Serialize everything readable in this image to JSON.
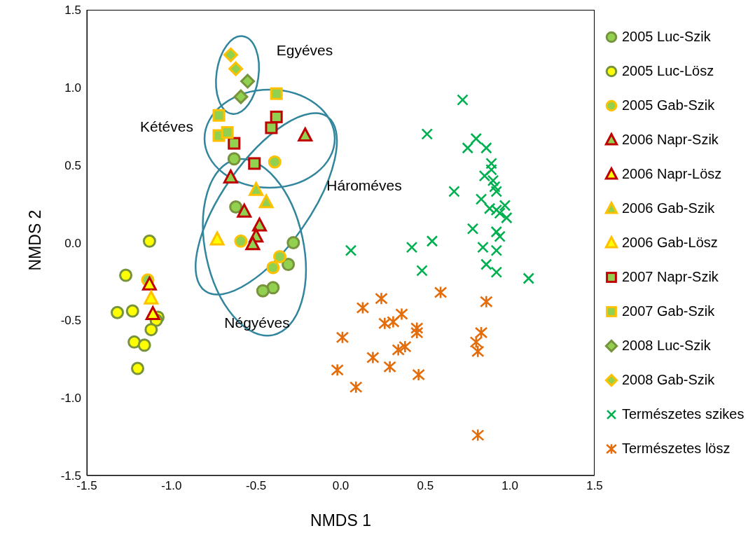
{
  "chart_data": {
    "type": "scatter",
    "xlabel": "NMDS 1",
    "ylabel": "NMDS 2",
    "xlim": [
      -1.5,
      1.5
    ],
    "ylim": [
      -1.5,
      1.5
    ],
    "xticks": [
      -1.5,
      {
        "value": -1,
        "label": "-1.0"
      },
      -0.5,
      {
        "value": 0,
        "label": "0.0"
      },
      0.5,
      {
        "value": 1,
        "label": "1.0"
      },
      1.5
    ],
    "yticks": [
      -1.5,
      {
        "value": -1,
        "label": "-1.0"
      },
      -0.5,
      {
        "value": 0,
        "label": "0.0"
      },
      0.5,
      {
        "value": 1,
        "label": "1.0"
      },
      1.5
    ],
    "grid": false,
    "legend": "right",
    "annotations": [
      "Egyéves",
      "Kétéves",
      "Hároméves",
      "Négyéves"
    ],
    "series": [
      {
        "name": "2005 Luc-Szik",
        "marker": "circle",
        "color": "#92d050",
        "x": [
          -0.63,
          -0.62,
          -0.28,
          -0.31,
          -0.4,
          -0.46
        ],
        "values": [
          0.54,
          0.23,
          0,
          -0.14,
          -0.29,
          -0.31
        ]
      },
      {
        "name": "2005 Luc-Lösz",
        "marker": "circle",
        "color": "#ffff00",
        "x": [
          -1.13,
          -1.27,
          -1.32,
          -1.23,
          -1.08,
          -1.09,
          -1.12,
          -1.22,
          -1.16,
          -1.2
        ],
        "values": [
          0.01,
          -0.21,
          -0.45,
          -0.44,
          -0.48,
          -0.5,
          -0.56,
          -0.64,
          -0.66,
          -0.81
        ]
      },
      {
        "name": "2005 Gab-Szik",
        "marker": "circle",
        "color": "#92d050",
        "x": [
          -1.14,
          -0.39,
          -0.59,
          -0.36,
          -0.4
        ],
        "values": [
          -0.24,
          0.52,
          0.01,
          -0.09,
          -0.16
        ]
      },
      {
        "name": "2006 Napr-Szik",
        "marker": "triangle",
        "color": "#92d050",
        "x": [
          -0.21,
          -0.65,
          -0.57,
          -0.48,
          -0.5,
          -0.52
        ],
        "values": [
          0.69,
          0.42,
          0.2,
          0.11,
          0.04,
          -0.01
        ]
      },
      {
        "name": "2006 Napr-Lösz",
        "marker": "triangle",
        "color": "#ffff00",
        "x": [
          -1.13,
          -1.11
        ],
        "values": [
          -0.27,
          -0.46
        ]
      },
      {
        "name": "2006 Gab-Szik",
        "marker": "triangle",
        "color": "#92d050",
        "x": [
          -0.5,
          -0.44
        ],
        "values": [
          0.34,
          0.26
        ]
      },
      {
        "name": "2006 Gab-Lösz",
        "marker": "triangle",
        "color": "#ffff00",
        "x": [
          -1.12,
          -0.73
        ],
        "values": [
          -0.36,
          0.02
        ]
      },
      {
        "name": "2007 Napr-Szik",
        "marker": "square",
        "color": "#92d050",
        "x": [
          -0.38,
          -0.41,
          -0.63,
          -0.51
        ],
        "values": [
          0.81,
          0.74,
          0.64,
          0.51
        ]
      },
      {
        "name": "2007 Gab-Szik",
        "marker": "square",
        "color": "#92d050",
        "x": [
          -0.38,
          -0.72,
          -0.72,
          -0.67
        ],
        "values": [
          0.96,
          0.82,
          0.69,
          0.71
        ]
      },
      {
        "name": "2008 Luc-Szik",
        "marker": "diamond",
        "color": "#92d050",
        "x": [
          -0.55,
          -0.59
        ],
        "values": [
          1.04,
          0.94
        ]
      },
      {
        "name": "2008 Gab-Szik",
        "marker": "diamond",
        "color": "#92d050",
        "x": [
          -0.65,
          -0.62
        ],
        "values": [
          1.21,
          1.12
        ]
      },
      {
        "name": "Természetes szikes",
        "marker": "cross",
        "color": "#00b050",
        "x": [
          0.72,
          0.51,
          0.8,
          0.75,
          0.86,
          0.89,
          0.89,
          0.85,
          0.9,
          0.91,
          0.92,
          0.67,
          0.83,
          0.88,
          0.97,
          0.92,
          0.94,
          0.98,
          0.78,
          0.92,
          0.94,
          0.06,
          0.42,
          0.54,
          0.84,
          0.92,
          0.48,
          0.86,
          0.92,
          1.11
        ],
        "values": [
          0.92,
          0.7,
          0.67,
          0.61,
          0.61,
          0.51,
          0.47,
          0.43,
          0.4,
          0.36,
          0.33,
          0.33,
          0.28,
          0.22,
          0.24,
          0.21,
          0.19,
          0.16,
          0.09,
          0.07,
          0.04,
          -0.05,
          -0.03,
          0.01,
          -0.03,
          -0.05,
          -0.18,
          -0.14,
          -0.19,
          -0.23
        ]
      },
      {
        "name": "Természetes lösz",
        "marker": "cross",
        "color": "#e46c0a",
        "x": [
          0.59,
          0.86,
          0.24,
          0.13,
          0.36,
          0.26,
          0.31,
          0.45,
          0.45,
          0.83,
          0.8,
          0.81,
          0.01,
          0.38,
          0.34,
          0.19,
          0.29,
          0.46,
          -0.02,
          0.09,
          0.81
        ],
        "values": [
          -0.32,
          -0.38,
          -0.36,
          -0.42,
          -0.46,
          -0.52,
          -0.51,
          -0.55,
          -0.58,
          -0.58,
          -0.64,
          -0.7,
          -0.61,
          -0.67,
          -0.69,
          -0.74,
          -0.8,
          -0.85,
          -0.82,
          -0.93,
          -1.24
        ]
      }
    ]
  }
}
